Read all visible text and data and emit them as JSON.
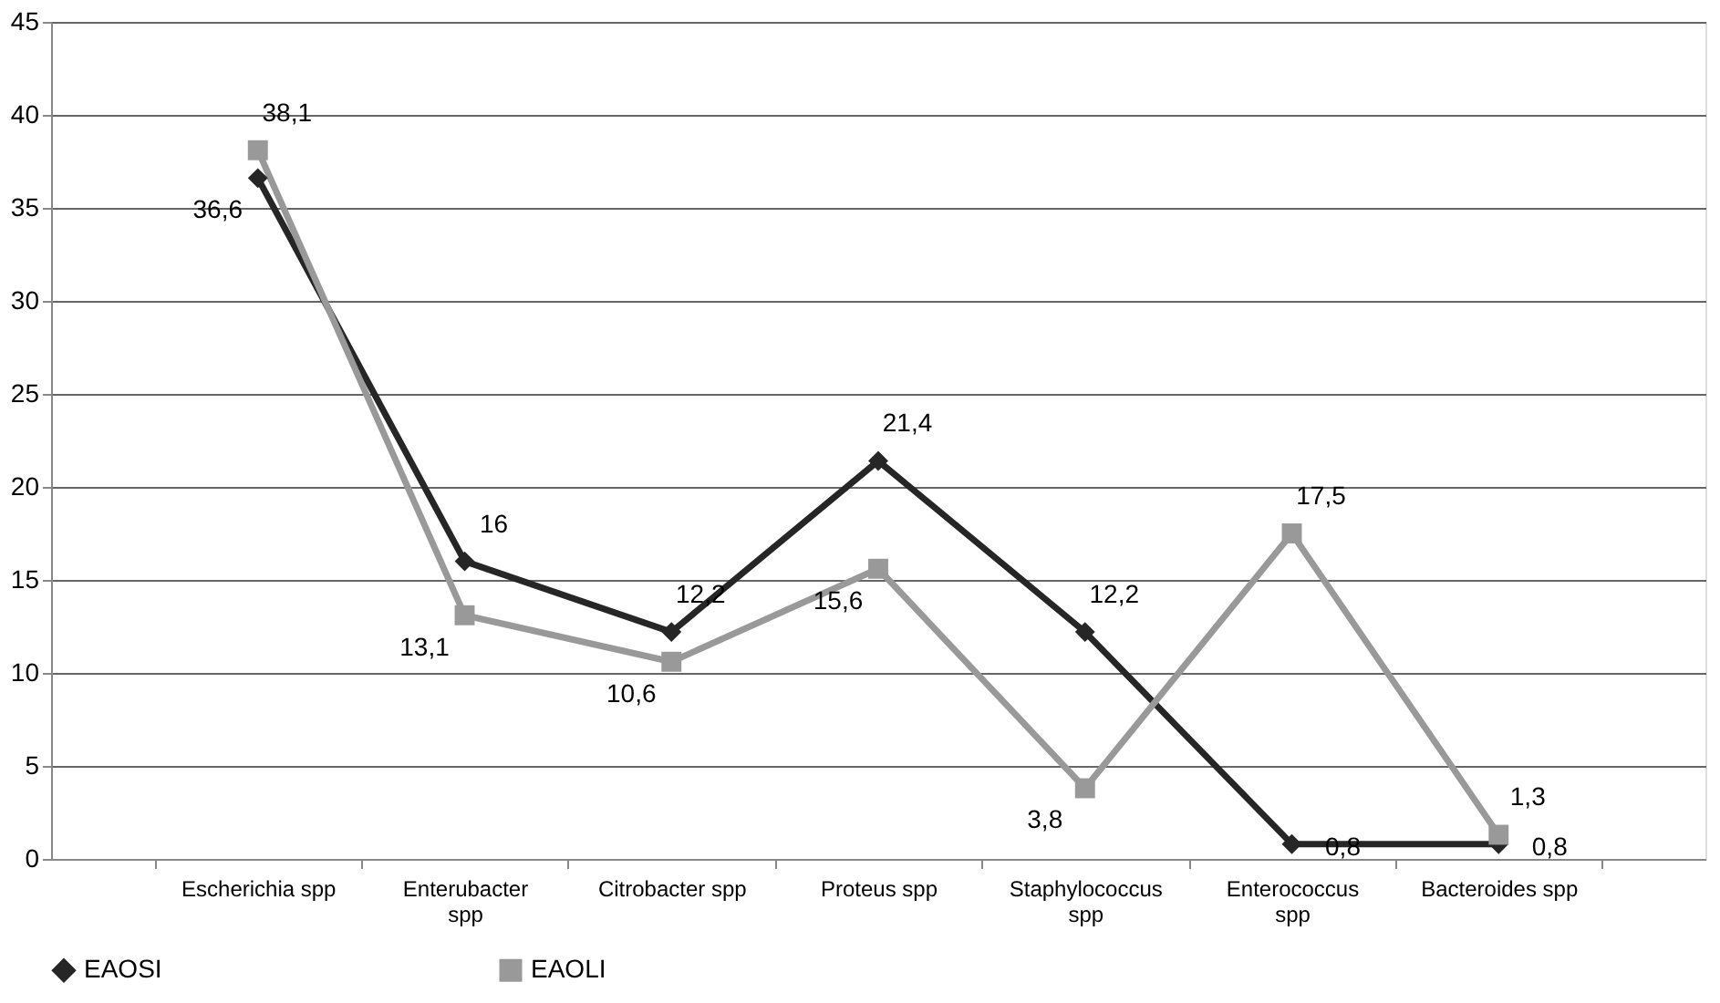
{
  "chart_data": {
    "type": "line",
    "categories": [
      "Escherichia spp",
      "Enterubacter spp",
      "Citrobacter spp",
      "Proteus spp",
      "Staphylococcus spp",
      "Enterococcus spp",
      "Bacteroides spp"
    ],
    "series": [
      {
        "name": "EAOSI",
        "color": "#262626",
        "marker": "diamond",
        "values": [
          36.6,
          16,
          12.2,
          21.4,
          12.2,
          0.8,
          0.8
        ],
        "value_labels": [
          "36,6",
          "16",
          "12,2",
          "21,4",
          "12,2",
          "0,8",
          "0,8"
        ]
      },
      {
        "name": "EAOLI",
        "color": "#999999",
        "marker": "square",
        "values": [
          38.1,
          13.1,
          10.6,
          15.6,
          3.8,
          17.5,
          1.3
        ],
        "value_labels": [
          "38,1",
          "13,1",
          "10,6",
          "15,6",
          "3,8",
          "17,5",
          "1,3"
        ]
      }
    ],
    "ylim": [
      0,
      45
    ],
    "yticks": [
      0,
      5,
      10,
      15,
      20,
      25,
      30,
      35,
      40,
      45
    ],
    "grid": "y",
    "legend": "bottom",
    "line_style": "solid"
  }
}
